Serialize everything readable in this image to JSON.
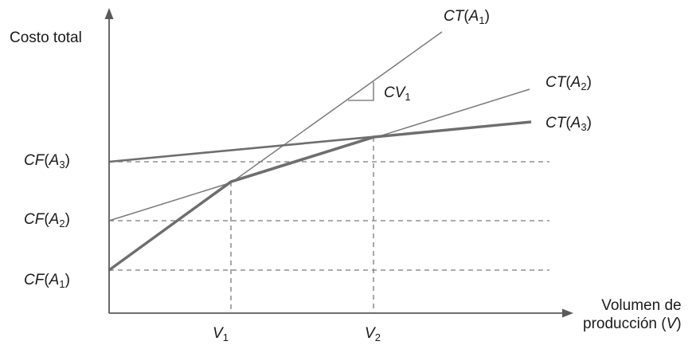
{
  "axes": {
    "y_label": "Costo total",
    "x_label_line1": "Volumen de",
    "x_label_line2": "producción (",
    "x_label_var": "V",
    "x_label_close": ")"
  },
  "lines": [
    {
      "func": "CT",
      "alt": "A",
      "alt_index": "1"
    },
    {
      "func": "CT",
      "alt": "A",
      "alt_index": "2"
    },
    {
      "func": "CT",
      "alt": "A",
      "alt_index": "3"
    }
  ],
  "fixed_costs": [
    {
      "func": "CF",
      "alt": "A",
      "alt_index": "3"
    },
    {
      "func": "CF",
      "alt": "A",
      "alt_index": "2"
    },
    {
      "func": "CF",
      "alt": "A",
      "alt_index": "1"
    }
  ],
  "volumes": [
    {
      "var": "V",
      "index": "1"
    },
    {
      "var": "V",
      "index": "2"
    }
  ],
  "slope": {
    "var": "CV",
    "index": "1"
  },
  "colors": {
    "thin_line": "#7a7a7a",
    "thick_line": "#6e6e6e",
    "axis": "#5a5a5a",
    "dashed": "#7a7a7a",
    "text": "#1a1a1a"
  }
}
